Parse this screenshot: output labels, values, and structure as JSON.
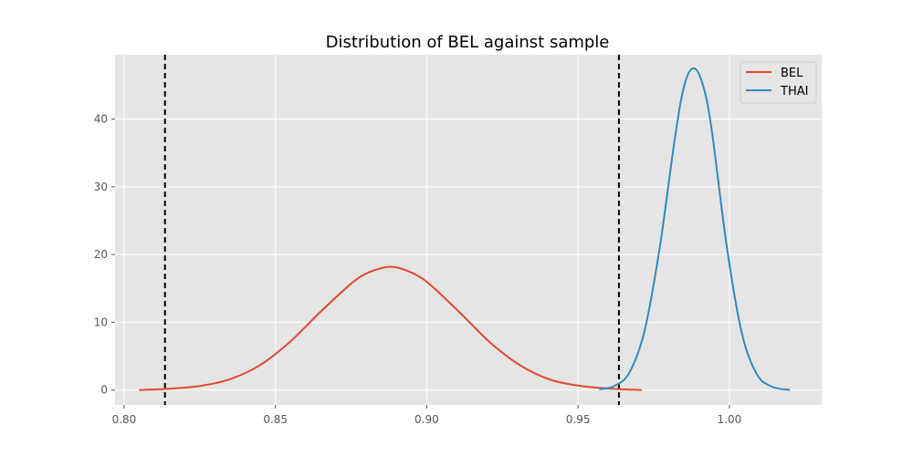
{
  "chart_data": {
    "type": "line",
    "title": "Distribution of BEL against sample",
    "xlabel": "",
    "ylabel": "",
    "xlim": [
      0.797,
      1.0305
    ],
    "ylim": [
      -2.2,
      49.5
    ],
    "x_ticks": [
      0.8,
      0.85,
      0.9,
      0.95,
      1.0
    ],
    "x_tick_labels": [
      "0.80",
      "0.85",
      "0.90",
      "0.95",
      "1.00"
    ],
    "y_ticks": [
      0,
      10,
      20,
      30,
      40
    ],
    "y_tick_labels": [
      "0",
      "10",
      "20",
      "30",
      "40"
    ],
    "grid": true,
    "legend_position": "top-right",
    "vlines": [
      0.8135,
      0.9635
    ],
    "series": [
      {
        "name": "BEL",
        "color": "#e24a33",
        "x": [
          0.805,
          0.815,
          0.825,
          0.835,
          0.845,
          0.855,
          0.865,
          0.875,
          0.88,
          0.885,
          0.888,
          0.891,
          0.896,
          0.901,
          0.911,
          0.921,
          0.931,
          0.941,
          0.951,
          0.961,
          0.971
        ],
        "y": [
          0.0,
          0.2,
          0.6,
          1.6,
          3.7,
          7.2,
          11.6,
          15.7,
          17.2,
          18.0,
          18.2,
          18.0,
          17.1,
          15.6,
          11.4,
          7.0,
          3.6,
          1.5,
          0.6,
          0.2,
          0.0
        ]
      },
      {
        "name": "THAI",
        "color": "#348abd",
        "x": [
          0.957,
          0.962,
          0.967,
          0.972,
          0.977,
          0.982,
          0.985,
          0.988,
          0.991,
          0.994,
          0.999,
          1.004,
          1.009,
          1.014,
          1.02
        ],
        "y": [
          0.1,
          0.6,
          2.6,
          8.8,
          21.1,
          37.2,
          44.8,
          47.5,
          45.4,
          38.9,
          21.6,
          8.6,
          2.4,
          0.5,
          0.0
        ]
      }
    ]
  }
}
